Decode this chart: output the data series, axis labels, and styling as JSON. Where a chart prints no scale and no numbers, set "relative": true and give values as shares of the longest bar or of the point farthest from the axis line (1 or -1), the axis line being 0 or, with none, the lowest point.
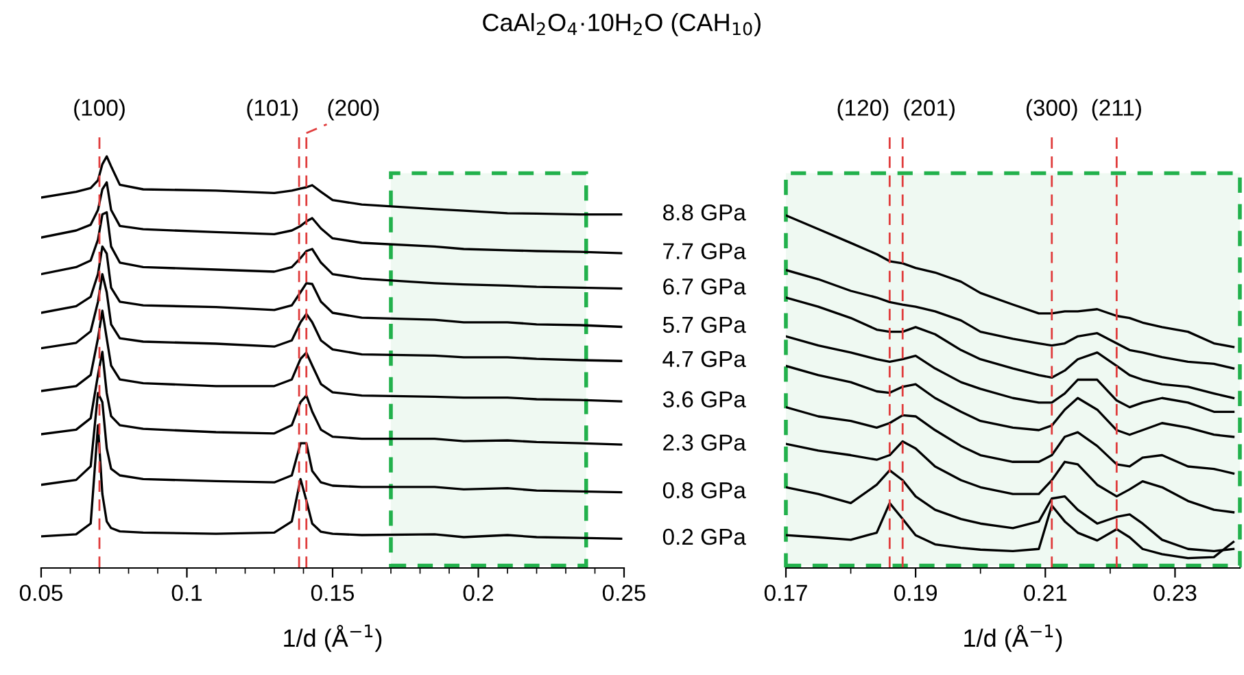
{
  "chart_data": [
    {
      "type": "line",
      "title": "CaAl$_{2}$O$_{4}$·10H$_{2}$O (CAH$_{10}$)",
      "xlabel": "1/d (Å$^{−1}$)",
      "relative": true,
      "tick_labels": "x",
      "xlim": [
        0.05,
        0.25
      ],
      "xticks": [
        0.05,
        {
          "value": 0.06,
          "label": null
        },
        {
          "value": 0.07,
          "label": null
        },
        {
          "value": 0.08,
          "label": null
        },
        {
          "value": 0.09,
          "label": null
        },
        0.1,
        {
          "value": 0.11,
          "label": null
        },
        {
          "value": 0.12,
          "label": null
        },
        {
          "value": 0.13,
          "label": null
        },
        {
          "value": 0.14,
          "label": null
        },
        0.15,
        {
          "value": 0.16,
          "label": null
        },
        {
          "value": 0.17,
          "label": null
        },
        {
          "value": 0.18,
          "label": null
        },
        {
          "value": 0.19,
          "label": null
        },
        0.2,
        {
          "value": 0.21,
          "label": null
        },
        {
          "value": 0.22,
          "label": null
        },
        {
          "value": 0.23,
          "label": null
        },
        {
          "value": 0.24,
          "label": null
        },
        0.25
      ],
      "x": [
        0.05,
        0.062,
        0.067,
        0.0695,
        0.071,
        0.0725,
        0.074,
        0.077,
        0.085,
        0.11,
        0.13,
        0.136,
        0.139,
        0.141,
        0.143,
        0.146,
        0.15,
        0.16,
        0.185,
        0.195,
        0.21,
        0.22,
        0.235,
        0.249
      ],
      "series": [
        {
          "name": "8.8 GPa",
          "color": "#000000",
          "values": [
            0.9,
            0.914,
            0.923,
            0.942,
            0.981,
            1.0,
            0.976,
            0.931,
            0.92,
            0.917,
            0.911,
            0.917,
            0.922,
            0.925,
            0.93,
            0.914,
            0.894,
            0.883,
            0.872,
            0.868,
            0.862,
            0.861,
            0.859,
            0.859
          ]
        },
        {
          "name": "7.7 GPa",
          "color": "#000000",
          "values": [
            0.803,
            0.82,
            0.834,
            0.87,
            0.92,
            0.937,
            0.87,
            0.831,
            0.823,
            0.816,
            0.811,
            0.82,
            0.831,
            0.842,
            0.85,
            0.825,
            0.801,
            0.79,
            0.781,
            0.775,
            0.772,
            0.77,
            0.768,
            0.765
          ]
        },
        {
          "name": "6.7 GPa",
          "color": "#000000",
          "values": [
            0.714,
            0.731,
            0.747,
            0.798,
            0.859,
            0.864,
            0.781,
            0.742,
            0.731,
            0.725,
            0.72,
            0.731,
            0.753,
            0.77,
            0.775,
            0.742,
            0.714,
            0.703,
            0.692,
            0.689,
            0.686,
            0.683,
            0.681,
            0.679
          ]
        },
        {
          "name": "5.7 GPa",
          "color": "#000000",
          "values": [
            0.62,
            0.636,
            0.659,
            0.714,
            0.781,
            0.764,
            0.681,
            0.647,
            0.638,
            0.634,
            0.627,
            0.638,
            0.67,
            0.692,
            0.69,
            0.647,
            0.62,
            0.608,
            0.603,
            0.597,
            0.597,
            0.592,
            0.59,
            0.586
          ]
        },
        {
          "name": "4.7 GPa",
          "color": "#000000",
          "values": [
            0.534,
            0.547,
            0.575,
            0.647,
            0.714,
            0.67,
            0.592,
            0.558,
            0.55,
            0.545,
            0.538,
            0.553,
            0.597,
            0.617,
            0.597,
            0.553,
            0.531,
            0.519,
            0.516,
            0.512,
            0.512,
            0.508,
            0.505,
            0.503
          ]
        },
        {
          "name": "3.6 GPa",
          "color": "#000000",
          "values": [
            0.43,
            0.442,
            0.469,
            0.558,
            0.625,
            0.558,
            0.492,
            0.458,
            0.449,
            0.442,
            0.442,
            0.458,
            0.508,
            0.523,
            0.492,
            0.447,
            0.427,
            0.419,
            0.416,
            0.414,
            0.414,
            0.41,
            0.408,
            0.405
          ]
        },
        {
          "name": "2.3 GPa",
          "color": "#000000",
          "values": [
            0.325,
            0.336,
            0.364,
            0.469,
            0.525,
            0.425,
            0.369,
            0.347,
            0.338,
            0.33,
            0.327,
            0.347,
            0.403,
            0.419,
            0.38,
            0.336,
            0.319,
            0.314,
            0.314,
            0.308,
            0.31,
            0.306,
            0.303,
            0.3
          ]
        },
        {
          "name": "0.8 GPa",
          "color": "#000000",
          "values": [
            0.202,
            0.214,
            0.247,
            0.425,
            0.403,
            0.291,
            0.241,
            0.225,
            0.216,
            0.211,
            0.208,
            0.225,
            0.303,
            0.303,
            0.236,
            0.208,
            0.2,
            0.197,
            0.197,
            0.191,
            0.194,
            0.188,
            0.186,
            0.184
          ]
        },
        {
          "name": "0.2 GPa",
          "color": "#000000",
          "values": [
            0.077,
            0.082,
            0.108,
            0.347,
            0.18,
            0.113,
            0.097,
            0.089,
            0.086,
            0.083,
            0.086,
            0.113,
            0.216,
            0.164,
            0.108,
            0.088,
            0.083,
            0.08,
            0.082,
            0.075,
            0.08,
            0.075,
            0.073,
            0.071
          ]
        }
      ],
      "ref_lines": [
        {
          "axis": "x",
          "value": 0.07,
          "color": "#e03c3c",
          "line_style": "dashed"
        },
        {
          "axis": "x",
          "value": 0.1385,
          "color": "#e03c3c",
          "line_style": "dashed"
        },
        {
          "axis": "x",
          "value": 0.141,
          "color": "#e03c3c",
          "line_style": "dashed"
        }
      ],
      "annotations": [
        "(100)",
        "(101)",
        "(200)"
      ],
      "bands": [
        {
          "axis": "x",
          "from": 0.17,
          "to": 0.237,
          "color": "#22b14c"
        }
      ]
    },
    {
      "type": "line",
      "xlabel": "1/d (Å$^{−1}$)",
      "relative": true,
      "tick_labels": "x",
      "xlim": [
        0.17,
        0.24
      ],
      "xticks": [
        0.17,
        {
          "value": 0.18,
          "label": null
        },
        0.19,
        {
          "value": 0.2,
          "label": null
        },
        0.21,
        {
          "value": 0.22,
          "label": null
        },
        0.23
      ],
      "x": [
        0.17,
        0.175,
        0.18,
        0.184,
        0.186,
        0.188,
        0.19,
        0.193,
        0.197,
        0.2,
        0.205,
        0.209,
        0.211,
        0.213,
        0.215,
        0.218,
        0.221,
        0.223,
        0.225,
        0.228,
        0.232,
        0.236,
        0.239
      ],
      "series": [
        {
          "color": "#000000",
          "values": [
            1.0,
            0.961,
            0.922,
            0.89,
            0.87,
            0.864,
            0.851,
            0.838,
            0.812,
            0.78,
            0.747,
            0.722,
            0.722,
            0.728,
            0.728,
            0.734,
            0.715,
            0.709,
            0.696,
            0.683,
            0.67,
            0.637,
            0.627
          ]
        },
        {
          "color": "#000000",
          "values": [
            0.845,
            0.819,
            0.786,
            0.767,
            0.754,
            0.747,
            0.741,
            0.728,
            0.702,
            0.67,
            0.65,
            0.637,
            0.631,
            0.637,
            0.657,
            0.666,
            0.637,
            0.618,
            0.611,
            0.598,
            0.585,
            0.579,
            0.566
          ]
        },
        {
          "color": "#000000",
          "values": [
            0.767,
            0.741,
            0.709,
            0.676,
            0.67,
            0.67,
            0.683,
            0.663,
            0.618,
            0.592,
            0.566,
            0.547,
            0.54,
            0.56,
            0.592,
            0.611,
            0.573,
            0.547,
            0.534,
            0.521,
            0.514,
            0.495,
            0.482
          ]
        },
        {
          "color": "#000000",
          "values": [
            0.657,
            0.631,
            0.611,
            0.592,
            0.585,
            0.592,
            0.602,
            0.566,
            0.527,
            0.508,
            0.482,
            0.469,
            0.469,
            0.495,
            0.534,
            0.534,
            0.475,
            0.456,
            0.469,
            0.482,
            0.469,
            0.443,
            0.443
          ]
        },
        {
          "color": "#000000",
          "values": [
            0.573,
            0.547,
            0.527,
            0.501,
            0.497,
            0.514,
            0.521,
            0.482,
            0.443,
            0.417,
            0.398,
            0.391,
            0.404,
            0.449,
            0.482,
            0.449,
            0.391,
            0.378,
            0.391,
            0.411,
            0.398,
            0.378,
            0.372
          ]
        },
        {
          "color": "#000000",
          "values": [
            0.456,
            0.43,
            0.417,
            0.398,
            0.411,
            0.433,
            0.43,
            0.391,
            0.346,
            0.32,
            0.301,
            0.301,
            0.32,
            0.372,
            0.385,
            0.346,
            0.294,
            0.288,
            0.313,
            0.32,
            0.288,
            0.281,
            0.268
          ]
        },
        {
          "color": "#000000",
          "values": [
            0.352,
            0.333,
            0.32,
            0.307,
            0.32,
            0.359,
            0.339,
            0.288,
            0.249,
            0.229,
            0.21,
            0.21,
            0.249,
            0.301,
            0.294,
            0.236,
            0.203,
            0.223,
            0.246,
            0.229,
            0.19,
            0.165,
            0.158
          ]
        },
        {
          "color": "#000000",
          "values": [
            0.229,
            0.21,
            0.184,
            0.236,
            0.277,
            0.249,
            0.203,
            0.165,
            0.139,
            0.126,
            0.113,
            0.132,
            0.197,
            0.203,
            0.165,
            0.126,
            0.145,
            0.152,
            0.126,
            0.08,
            0.054,
            0.048,
            0.054
          ]
        },
        {
          "color": "#000000",
          "values": [
            0.093,
            0.087,
            0.08,
            0.1,
            0.184,
            0.139,
            0.093,
            0.067,
            0.057,
            0.052,
            0.048,
            0.054,
            0.177,
            0.132,
            0.1,
            0.078,
            0.11,
            0.087,
            0.054,
            0.039,
            0.028,
            0.031,
            0.074
          ]
        }
      ],
      "ref_lines": [
        {
          "axis": "x",
          "value": 0.186,
          "color": "#e03c3c",
          "line_style": "dashed"
        },
        {
          "axis": "x",
          "value": 0.188,
          "color": "#e03c3c",
          "line_style": "dashed"
        },
        {
          "axis": "x",
          "value": 0.211,
          "color": "#e03c3c",
          "line_style": "dashed"
        },
        {
          "axis": "x",
          "value": 0.221,
          "color": "#e03c3c",
          "line_style": "dashed"
        }
      ],
      "annotations": [
        "(120)",
        "(201)",
        "(300)",
        "(211)"
      ],
      "bands": [
        {
          "axis": "x",
          "from": 0.17,
          "to": 0.24,
          "color": "#22b14c"
        }
      ]
    }
  ]
}
